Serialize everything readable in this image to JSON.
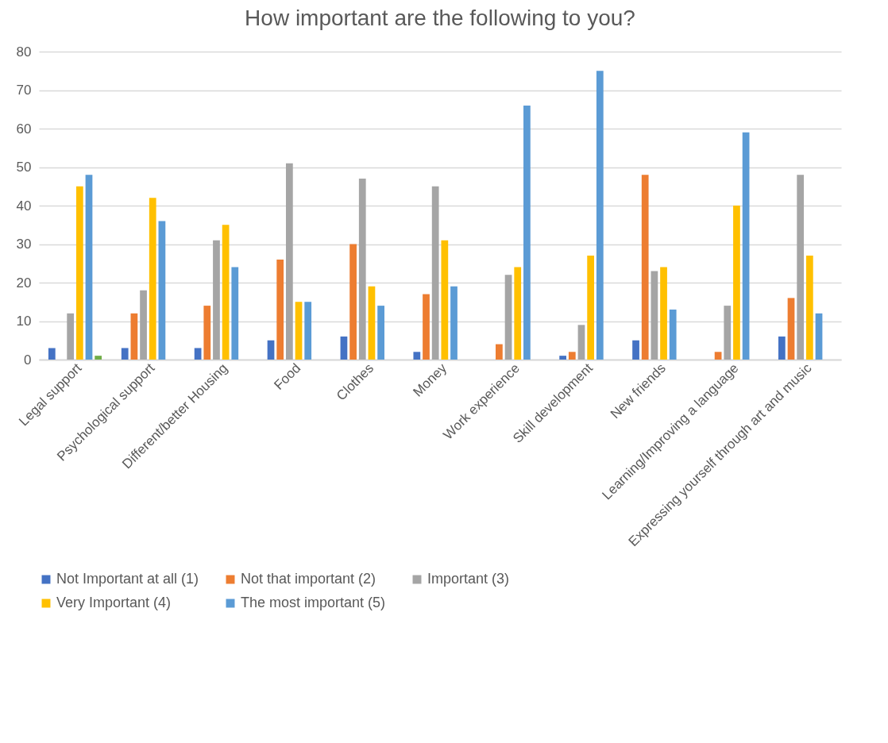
{
  "chart_data": {
    "type": "bar",
    "title": "How important are the following to you?",
    "categories": [
      "Legal support",
      "Psychological support",
      "Different/better Housing",
      "Food",
      "Clothes",
      "Money",
      "Work experience",
      "Skill development",
      "New friends",
      "Learning/Improving a language",
      "Expressing yourself through art and music"
    ],
    "series": [
      {
        "name": "Not Important at all (1)",
        "color": "#4472c4",
        "values": [
          3,
          3,
          3,
          5,
          6,
          2,
          null,
          1,
          5,
          null,
          6
        ]
      },
      {
        "name": "Not that important (2)",
        "color": "#ed7d31",
        "values": [
          null,
          12,
          14,
          26,
          30,
          17,
          4,
          2,
          48,
          2,
          16
        ]
      },
      {
        "name": "Important (3)",
        "color": "#a5a5a5",
        "values": [
          12,
          18,
          31,
          51,
          47,
          45,
          22,
          9,
          23,
          14,
          48
        ]
      },
      {
        "name": "Very Important (4)",
        "color": "#ffc000",
        "values": [
          45,
          42,
          35,
          15,
          19,
          31,
          24,
          27,
          24,
          40,
          27
        ]
      },
      {
        "name": "The most important (5)",
        "color": "#5b9bd5",
        "values": [
          48,
          36,
          24,
          15,
          14,
          19,
          66,
          75,
          13,
          59,
          12
        ]
      },
      {
        "color": "#70ad47",
        "values": [
          1,
          null,
          null,
          null,
          null,
          null,
          null,
          null,
          null,
          null,
          null
        ]
      }
    ],
    "ylim": [
      0,
      80
    ],
    "yticks": [
      0,
      10,
      20,
      30,
      40,
      50,
      60,
      70,
      80
    ],
    "grid": "y",
    "legend": "bottom"
  }
}
